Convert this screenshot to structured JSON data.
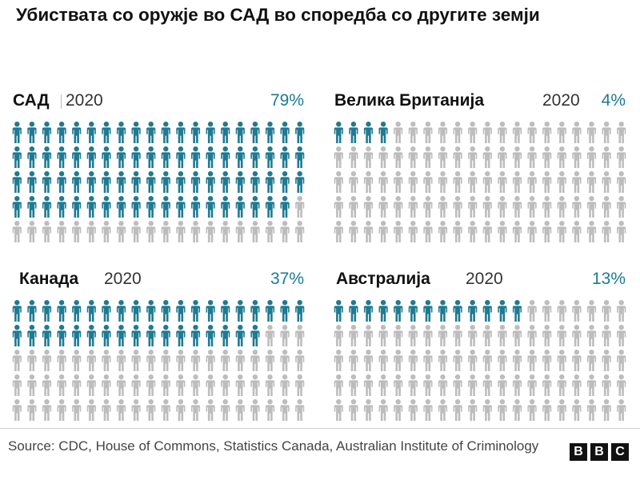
{
  "title": "Убиствата со оружје во САД во споредба со другите земји",
  "source": "Source: CDC, House of Commons, Statistics Canada, Australian Institute of Criminology",
  "logo": {
    "letters": [
      "B",
      "B",
      "C"
    ]
  },
  "colors": {
    "highlight": "#1f7a92",
    "rest": "#bdbdbd",
    "percent_text": "#1a7b93",
    "logo_box": "#111111"
  },
  "icon": "person-icon",
  "chart_data": {
    "type": "waffle",
    "title": "Убиствата со оружје во САД во споредба со другите земји",
    "units_per_panel": 100,
    "grid": {
      "rows": 5,
      "columns": 20
    },
    "panels": [
      {
        "country": "САД",
        "year": "2020",
        "value": 79,
        "label": "79%"
      },
      {
        "country": "Велика Британија",
        "year": "2020",
        "value": 4,
        "label": "4%"
      },
      {
        "country": "Канада",
        "year": "2020",
        "value": 37,
        "label": "37%"
      },
      {
        "country": "Австралија",
        "year": "2020",
        "value": 13,
        "label": "13%"
      }
    ]
  }
}
